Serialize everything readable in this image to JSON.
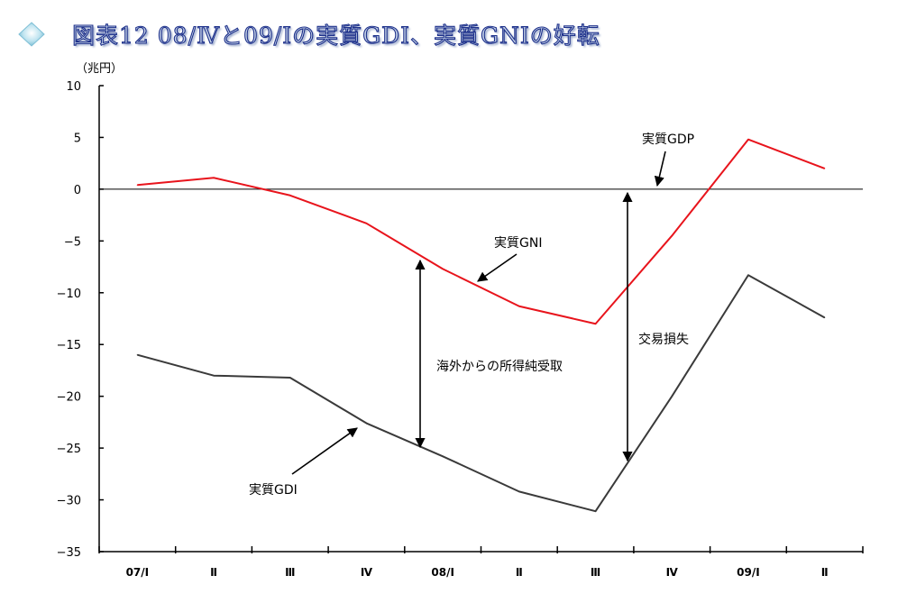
{
  "header": {
    "title": "図表12 08/Ⅳと09/Ⅰの実質GDI、実質GNIの好転",
    "icon": "diamond-bullet-icon"
  },
  "chart_data": {
    "type": "line",
    "title": "図表12 08/Ⅳと09/Ⅰの実質GDI、実質GNIの好転",
    "ylabel": "（兆円）",
    "xlabel": "",
    "ylim": [
      -35,
      10
    ],
    "yticks": [
      10,
      5,
      0,
      -5,
      -10,
      -15,
      -20,
      -25,
      -30,
      -35
    ],
    "ytick_labels": [
      "10",
      "5",
      "0",
      "−5",
      "−10",
      "−15",
      "−20",
      "−25",
      "−30",
      "−35"
    ],
    "categories": [
      "07/Ⅰ",
      "Ⅱ",
      "Ⅲ",
      "Ⅳ",
      "08/Ⅰ",
      "Ⅱ",
      "Ⅲ",
      "Ⅳ",
      "09/Ⅰ",
      "Ⅱ"
    ],
    "grid": false,
    "series": [
      {
        "name": "実質GNI",
        "color": "#e8141c",
        "values": [
          0.4,
          1.1,
          -0.6,
          -3.3,
          -7.7,
          -11.3,
          -13.0,
          -4.5,
          4.8,
          2.0
        ]
      },
      {
        "name": "実質GDI",
        "color": "#3a3a3a",
        "values": [
          -16.0,
          -18.0,
          -18.2,
          -22.6,
          -25.8,
          -29.2,
          -31.1,
          -20.0,
          -8.3,
          -12.4
        ]
      }
    ],
    "series_label_colors": {
      "zero_line": "#000000",
      "arrows": "#000000"
    },
    "annotations": [
      {
        "text": "実質GDP",
        "points_to": "zero-line"
      },
      {
        "text": "実質GNI",
        "points_to": "GNI-line"
      },
      {
        "text": "実質GDI",
        "points_to": "GDI-line"
      },
      {
        "text": "海外からの所得純受取",
        "span": "between GNI and GDI at 08/Ⅰ"
      },
      {
        "text": "交易損失",
        "span": "between 0 and GDI near 08/Ⅲ–Ⅳ"
      }
    ]
  }
}
